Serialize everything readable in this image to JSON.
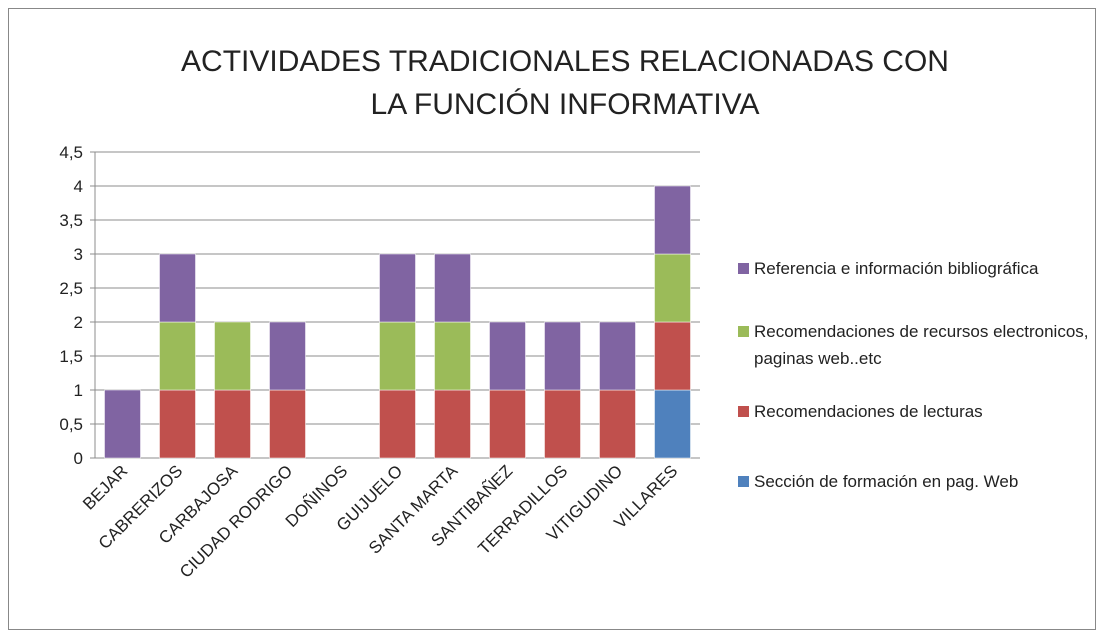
{
  "chart_data": {
    "type": "stacked_bar",
    "title": "ACTIVIDADES TRADICIONALES RELACIONADAS CON LA FUNCIÓN INFORMATIVA",
    "categories": [
      "BEJAR",
      "CABRERIZOS",
      "CARBAJOSA",
      "CIUDAD RODRIGO",
      "DOÑINOS",
      "GUIJUELO",
      "SANTA MARTA",
      "SANTIBAÑEZ",
      "TERRADILLOS",
      "VITIGUDINO",
      "VILLARES"
    ],
    "series": [
      {
        "name": "Sección de formación en pag. Web",
        "color": "#4f81bd",
        "values": [
          0,
          0,
          0,
          0,
          0,
          0,
          0,
          0,
          0,
          0,
          1
        ]
      },
      {
        "name": "Recomendaciones de lecturas",
        "color": "#c0504d",
        "values": [
          0,
          1,
          1,
          1,
          0,
          1,
          1,
          1,
          1,
          1,
          1
        ]
      },
      {
        "name": "Recomendaciones de recursos electronicos, paginas web..etc",
        "color": "#9bbb59",
        "values": [
          0,
          1,
          1,
          0,
          0,
          1,
          1,
          0,
          0,
          0,
          1
        ]
      },
      {
        "name": "Referencia e información bibliográfica",
        "color": "#8064a2",
        "values": [
          1,
          1,
          0,
          1,
          0,
          1,
          1,
          1,
          1,
          1,
          1
        ]
      }
    ],
    "ylim": [
      0,
      4.5
    ],
    "yticks": [
      0,
      {
        "value": 0.5,
        "label": "0,5"
      },
      1,
      {
        "value": 1.5,
        "label": "1,5"
      },
      2,
      {
        "value": 2.5,
        "label": "2,5"
      },
      3,
      {
        "value": 3.5,
        "label": "3,5"
      },
      4,
      {
        "value": 4.5,
        "label": "4,5"
      }
    ],
    "grid": true,
    "legend": "right"
  }
}
